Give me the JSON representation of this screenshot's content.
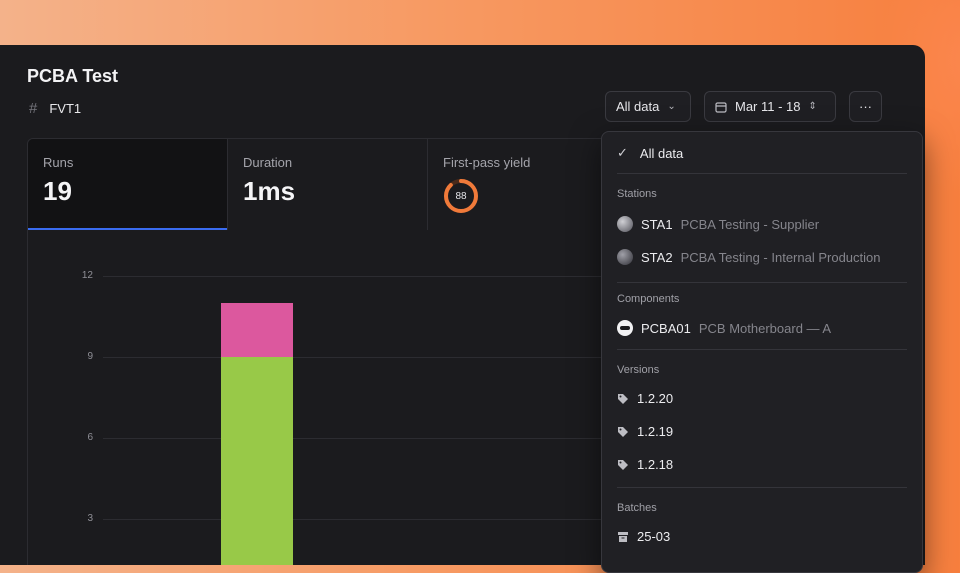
{
  "page": {
    "title": "PCBA Test",
    "subtitle": "FVT1"
  },
  "controls": {
    "filter_label": "All data",
    "date_label": "Mar 11 - 18",
    "more_label": "···"
  },
  "kpis": [
    {
      "label": "Runs",
      "value": "19"
    },
    {
      "label": "Duration",
      "value": "1ms"
    },
    {
      "label": "First-pass yield",
      "value": "88"
    }
  ],
  "chart_data": {
    "type": "bar",
    "y_ticks": [
      "12",
      "9",
      "6",
      "3"
    ],
    "ylim": [
      0,
      12
    ],
    "series": [
      {
        "values": [
          9
        ],
        "color": "#98c948"
      },
      {
        "values": [
          2
        ],
        "color": "#dc589e"
      }
    ]
  },
  "dropdown": {
    "selected": "All data",
    "stations_header": "Stations",
    "stations": [
      {
        "code": "STA1",
        "desc": "PCBA Testing - Supplier"
      },
      {
        "code": "STA2",
        "desc": "PCBA Testing - Internal Production"
      }
    ],
    "components_header": "Components",
    "components": [
      {
        "code": "PCBA01",
        "desc": "PCB Motherboard — A"
      }
    ],
    "versions_header": "Versions",
    "versions": [
      "1.2.20",
      "1.2.19",
      "1.2.18"
    ],
    "batches_header": "Batches",
    "batches": [
      "25-03"
    ]
  },
  "colors": {
    "accent": "#3a6cf0",
    "yield_ring": "#f07a3a"
  }
}
